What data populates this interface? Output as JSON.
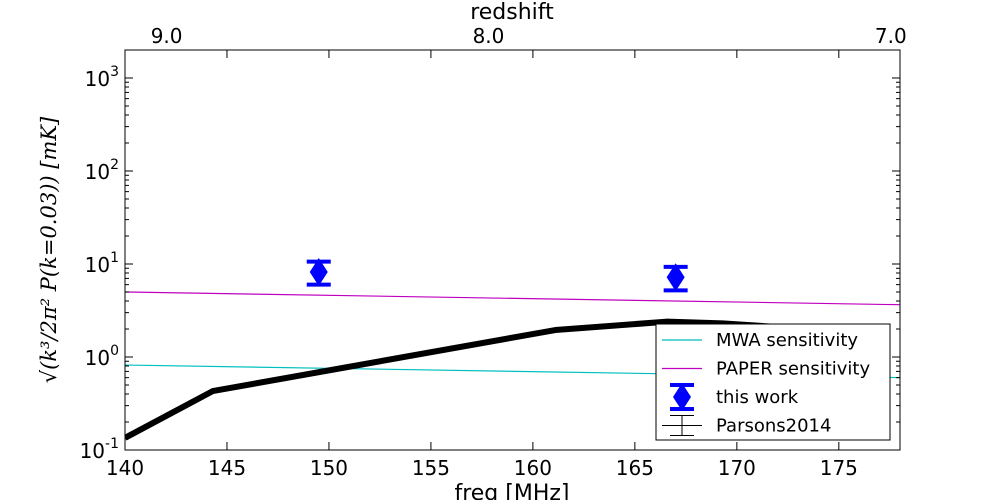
{
  "chart_data": {
    "type": "line",
    "title": "",
    "xlabel": "freq [MHz]",
    "ylabel": "√(k³/2π² P(k=0.03))   [mK]",
    "top_xlabel": "redshift",
    "xlim": [
      140,
      178
    ],
    "ylim": [
      0.1,
      2000
    ],
    "yscale": "log",
    "x_ticks": [
      "140",
      "145",
      "150",
      "155",
      "160",
      "165",
      "170",
      "175"
    ],
    "y_ticks": [
      {
        "base": "10",
        "exp": "-1",
        "value": 0.1
      },
      {
        "base": "10",
        "exp": "0",
        "value": 1
      },
      {
        "base": "10",
        "exp": "1",
        "value": 10
      },
      {
        "base": "10",
        "exp": "2",
        "value": 100
      },
      {
        "base": "10",
        "exp": "3",
        "value": 1000
      }
    ],
    "top_ticks": [
      {
        "label": "9.0",
        "z": 9.0
      },
      {
        "label": "8.0",
        "z": 8.0
      },
      {
        "label": "7.0",
        "z": 7.0
      }
    ],
    "grid": false,
    "legend_position": "lower-right",
    "series": [
      {
        "name": "MWA sensitivity",
        "type": "line",
        "color": "#00bfbf",
        "x": [
          140,
          178
        ],
        "y": [
          0.82,
          0.6
        ]
      },
      {
        "name": "PAPER sensitivity",
        "type": "line",
        "color": "#bf00bf",
        "x": [
          140,
          178
        ],
        "y": [
          5.0,
          3.65
        ]
      },
      {
        "name": "this work",
        "type": "errorbar",
        "color": "#0000ff",
        "x": [
          149.5,
          167.0
        ],
        "y": [
          8.2,
          7.2
        ],
        "yerr_low": [
          6.0,
          5.2
        ],
        "yerr_high": [
          10.6,
          9.3
        ]
      },
      {
        "name": "Parsons2014",
        "type": "line",
        "color": "#000000",
        "x": [
          140,
          144.3,
          161.1,
          166.6,
          169.3,
          172
        ],
        "y": [
          0.135,
          0.43,
          1.95,
          2.4,
          2.3,
          2.1
        ]
      }
    ]
  }
}
